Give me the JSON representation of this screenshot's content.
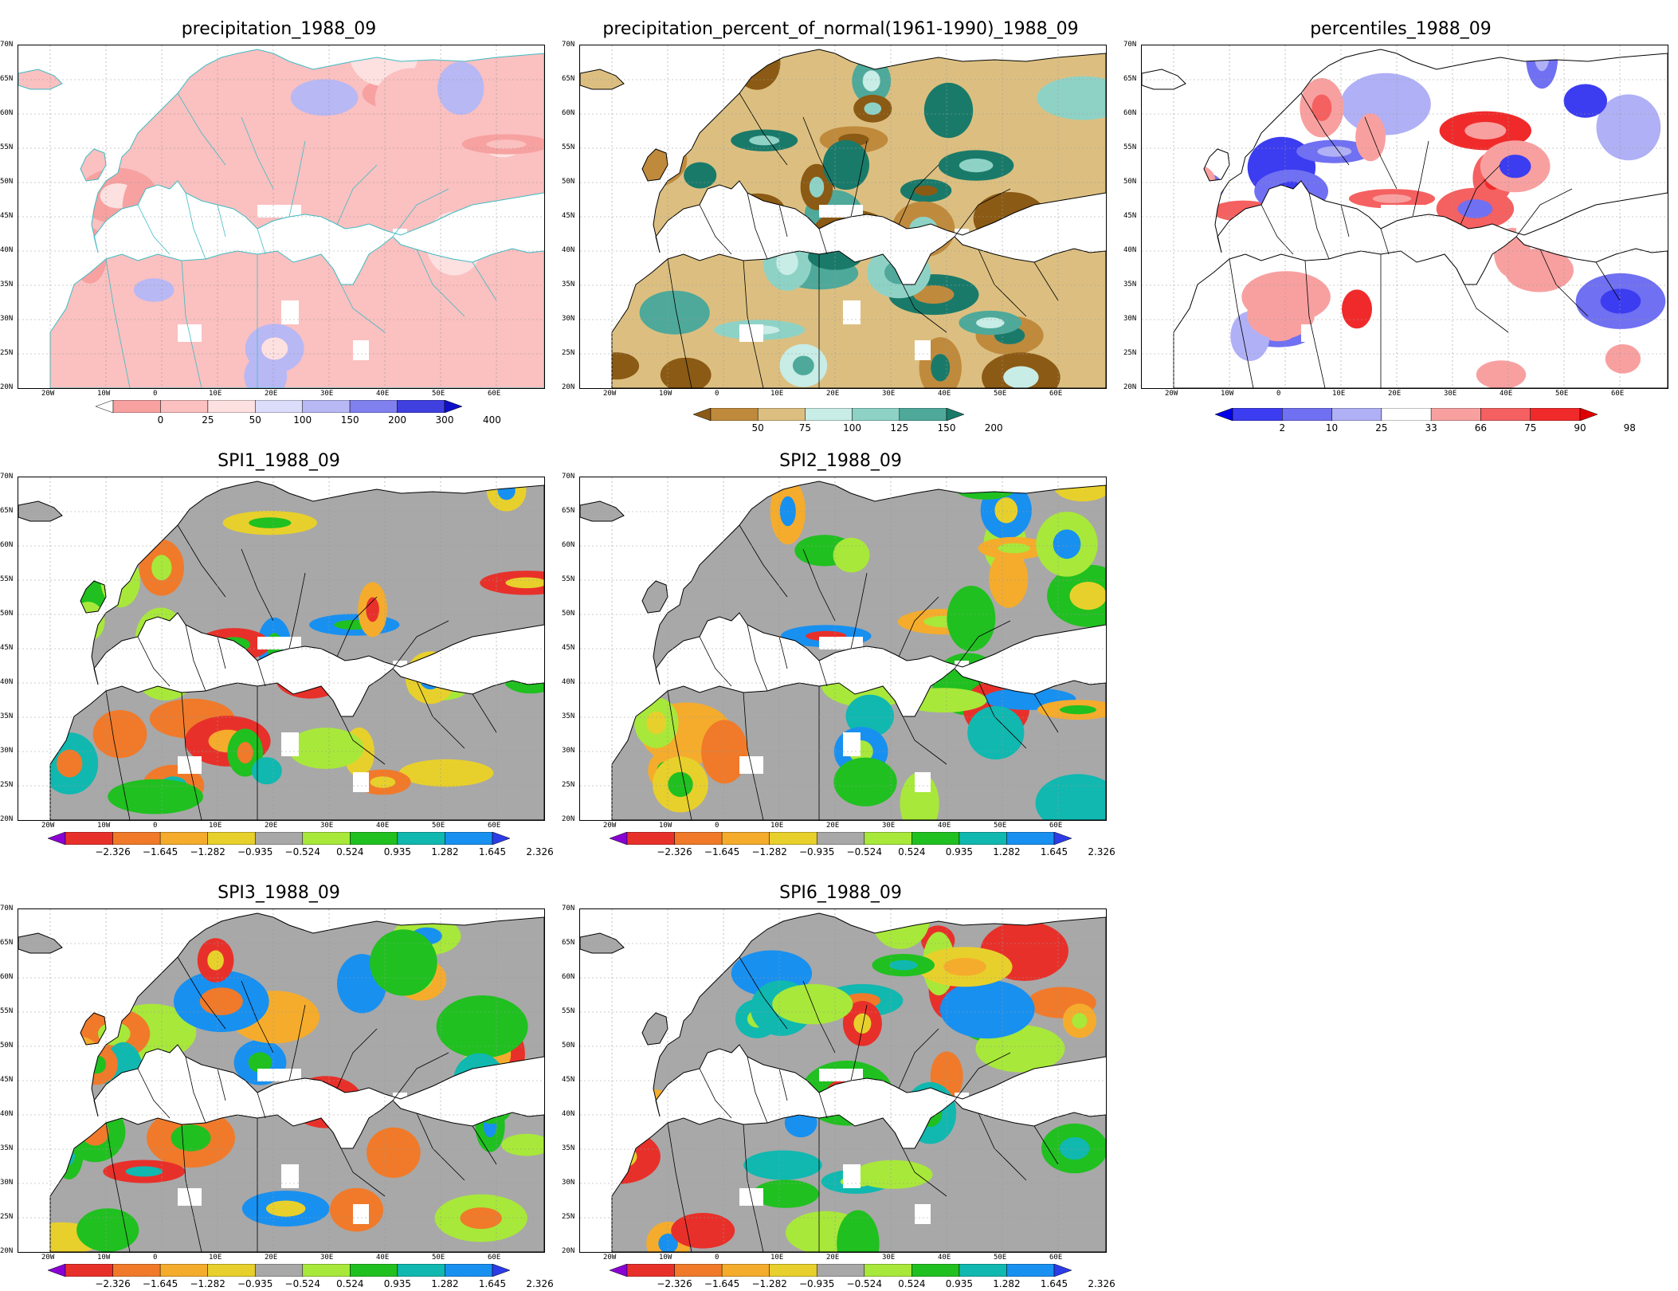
{
  "lat_labels": [
    "70N",
    "65N",
    "60N",
    "55N",
    "50N",
    "45N",
    "40N",
    "35N",
    "30N",
    "25N",
    "20N"
  ],
  "lon_labels": [
    "20W",
    "10W",
    "0",
    "10E",
    "20E",
    "30E",
    "40E",
    "50E",
    "60E"
  ],
  "panels": [
    {
      "id": "precip",
      "title": "precipitation_1988_09",
      "style": "precip",
      "colorbar": {
        "colors": [
          "#ffffff",
          "#f7a1a1",
          "#fbc0c0",
          "#fde0e0",
          "#dcdcfb",
          "#b8b8f5",
          "#8080ef",
          "#4040e0",
          "#1010c8"
        ],
        "labels": [
          "0",
          "25",
          "50",
          "100",
          "150",
          "200",
          "300",
          "400"
        ]
      }
    },
    {
      "id": "pct",
      "title": "precipitation_percent_of_normal(1961-1990)_1988_09",
      "style": "pct",
      "colorbar": {
        "colors": [
          "#8b5a14",
          "#c08a3c",
          "#dcbf80",
          "#c8ece6",
          "#8ed2c6",
          "#4ea99a",
          "#1a7a6a"
        ],
        "labels": [
          "50",
          "75",
          "100",
          "125",
          "150",
          "200"
        ]
      }
    },
    {
      "id": "perc",
      "title": "percentiles_1988_09",
      "style": "perc",
      "colorbar": {
        "colors": [
          "#0000e6",
          "#3c3cf0",
          "#7070f2",
          "#b0b0f6",
          "#ffffff",
          "#f8a0a0",
          "#f56060",
          "#f02a2a",
          "#e00000"
        ],
        "labels": [
          "2",
          "10",
          "25",
          "33",
          "66",
          "75",
          "90",
          "98"
        ]
      }
    },
    {
      "id": "spi1",
      "title": "SPI1_1988_09",
      "style": "spi",
      "colorbar": {
        "colors": [
          "#8a00d4",
          "#e8302a",
          "#f07a2a",
          "#f5ac2c",
          "#e8d02c",
          "#a8a8a8",
          "#a8e83a",
          "#20c020",
          "#10b8b0",
          "#1890f0",
          "#2c3ce6"
        ],
        "labels": [
          "−2.326",
          "−1.645",
          "−1.282",
          "−0.935",
          "−0.524",
          "0.524",
          "0.935",
          "1.282",
          "1.645",
          "2.326"
        ]
      }
    },
    {
      "id": "spi2",
      "title": "SPI2_1988_09",
      "style": "spi",
      "colorbar": {
        "colors": [
          "#8a00d4",
          "#e8302a",
          "#f07a2a",
          "#f5ac2c",
          "#e8d02c",
          "#a8a8a8",
          "#a8e83a",
          "#20c020",
          "#10b8b0",
          "#1890f0",
          "#2c3ce6"
        ],
        "labels": [
          "−2.326",
          "−1.645",
          "−1.282",
          "−0.935",
          "−0.524",
          "0.524",
          "0.935",
          "1.282",
          "1.645",
          "2.326"
        ]
      }
    },
    {
      "id": "spi3",
      "title": "SPI3_1988_09",
      "style": "spi",
      "colorbar": {
        "colors": [
          "#8a00d4",
          "#e8302a",
          "#f07a2a",
          "#f5ac2c",
          "#e8d02c",
          "#a8a8a8",
          "#a8e83a",
          "#20c020",
          "#10b8b0",
          "#1890f0",
          "#2c3ce6"
        ],
        "labels": [
          "−2.326",
          "−1.645",
          "−1.282",
          "−0.935",
          "−0.524",
          "0.524",
          "0.935",
          "1.282",
          "1.645",
          "2.326"
        ]
      }
    },
    {
      "id": "spi6",
      "title": "SPI6_1988_09",
      "style": "spi",
      "colorbar": {
        "colors": [
          "#8a00d4",
          "#e8302a",
          "#f07a2a",
          "#f5ac2c",
          "#e8d02c",
          "#a8a8a8",
          "#a8e83a",
          "#20c020",
          "#10b8b0",
          "#1890f0",
          "#2c3ce6"
        ],
        "labels": [
          "−2.326",
          "−1.645",
          "−1.282",
          "−0.935",
          "−0.524",
          "0.524",
          "0.935",
          "1.282",
          "1.645",
          "2.326"
        ]
      }
    }
  ]
}
